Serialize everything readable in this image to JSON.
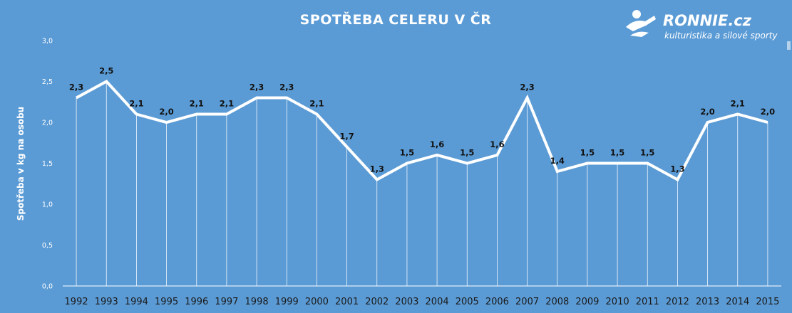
{
  "colors": {
    "background": "#5b9bd5",
    "line": "#ffffff",
    "gridline": "#ffffff",
    "label_text": "#111111"
  },
  "brand": {
    "name": "RONNIE.cz",
    "tagline": "kulturistika a silové sporty",
    "icon": "athlete-logo-icon"
  },
  "chart_data": {
    "type": "line",
    "title": "SPOTŘEBA CELERU V ČR",
    "xlabel": "",
    "ylabel": "Spotřeba v kg na osobu",
    "ylim": [
      0,
      3
    ],
    "yticks": [
      "0,0",
      "0,5",
      "1,0",
      "1,5",
      "2,0",
      "2,5",
      "3,0"
    ],
    "grid": "vertical drop lines",
    "legend": "none",
    "categories": [
      "1992",
      "1993",
      "1994",
      "1995",
      "1996",
      "1997",
      "1998",
      "1999",
      "2000",
      "2001",
      "2002",
      "2003",
      "2004",
      "2005",
      "2006",
      "2007",
      "2008",
      "2009",
      "2010",
      "2011",
      "2012",
      "2013",
      "2014",
      "2015"
    ],
    "values": [
      2.3,
      2.5,
      2.1,
      2.0,
      2.1,
      2.1,
      2.3,
      2.3,
      2.1,
      1.7,
      1.3,
      1.5,
      1.6,
      1.5,
      1.6,
      2.3,
      1.4,
      1.5,
      1.5,
      1.5,
      1.3,
      2.0,
      2.1,
      2.0
    ],
    "data_labels": [
      "2,3",
      "2,5",
      "2,1",
      "2,0",
      "2,1",
      "2,1",
      "2,3",
      "2,3",
      "2,1",
      "1,7",
      "1,3",
      "1,5",
      "1,6",
      "1,5",
      "1,6",
      "2,3",
      "1,4",
      "1,5",
      "1,5",
      "1,5",
      "1,3",
      "2,0",
      "2,1",
      "2,0"
    ]
  }
}
